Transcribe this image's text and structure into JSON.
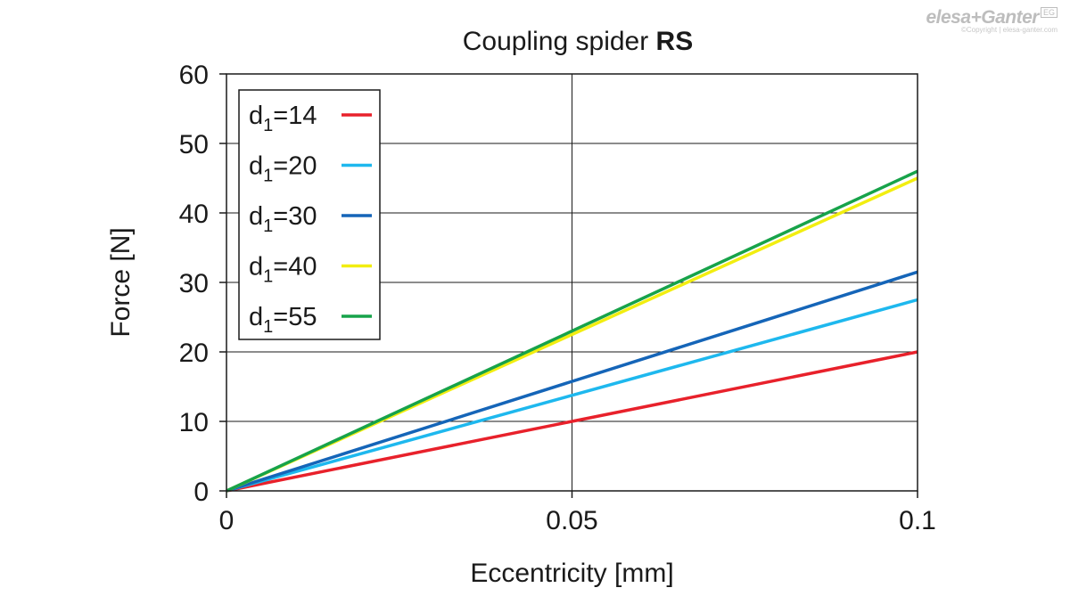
{
  "watermark": {
    "brand_left": "elesa",
    "brand_plus": "+",
    "brand_right": "Ganter",
    "badge": "EG",
    "copyright": "©Copyright | elesa-ganter.com"
  },
  "chart_data": {
    "type": "line",
    "title_plain": "Coupling spider ",
    "title_bold": "RS",
    "xlabel": "Eccentricity [mm]",
    "ylabel": "Force [N]",
    "xlim": [
      0,
      0.1
    ],
    "ylim": [
      0,
      60
    ],
    "xticks": [
      0,
      0.05,
      0.1
    ],
    "xtick_labels": [
      "0",
      "0.05",
      "0.1"
    ],
    "yticks": [
      0,
      10,
      20,
      30,
      40,
      50,
      60
    ],
    "ytick_labels": [
      "0",
      "10",
      "20",
      "30",
      "40",
      "50",
      "60"
    ],
    "grid": true,
    "legend_position": "top-left",
    "series": [
      {
        "name_base": "d",
        "name_sub": "1",
        "name_rest": "=14",
        "color": "#e8212b",
        "x": [
          0,
          0.1
        ],
        "y": [
          0,
          20
        ]
      },
      {
        "name_base": "d",
        "name_sub": "1",
        "name_rest": "=20",
        "color": "#1eb8ee",
        "x": [
          0,
          0.1
        ],
        "y": [
          0,
          27.5
        ]
      },
      {
        "name_base": "d",
        "name_sub": "1",
        "name_rest": "=30",
        "color": "#1565b8",
        "x": [
          0,
          0.1
        ],
        "y": [
          0,
          31.5
        ]
      },
      {
        "name_base": "d",
        "name_sub": "1",
        "name_rest": "=40",
        "color": "#f2ee10",
        "x": [
          0,
          0.1
        ],
        "y": [
          0,
          45
        ]
      },
      {
        "name_base": "d",
        "name_sub": "1",
        "name_rest": "=55",
        "color": "#17a34a",
        "x": [
          0,
          0.1
        ],
        "y": [
          0,
          46
        ]
      }
    ]
  }
}
